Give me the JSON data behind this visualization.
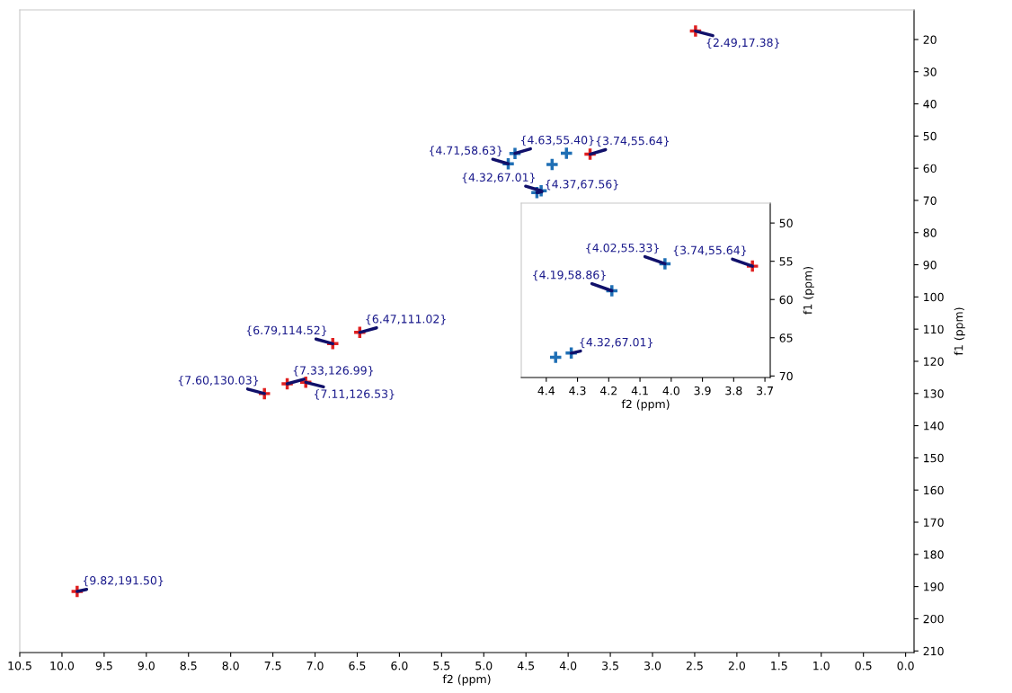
{
  "chart_data": [
    {
      "type": "scatter",
      "xlabel": "f2 (ppm)",
      "ylabel": "f1 (ppm)",
      "marker": "cross",
      "grid": false,
      "xlim": [
        10.5,
        -0.1
      ],
      "ylim": [
        210.5,
        10.8
      ],
      "xticks": [
        10.5,
        {
          "value": 10,
          "label": "10.0"
        },
        9.5,
        {
          "value": 9,
          "label": "9.0"
        },
        8.5,
        {
          "value": 8,
          "label": "8.0"
        },
        7.5,
        {
          "value": 7,
          "label": "7.0"
        },
        6.5,
        {
          "value": 6,
          "label": "6.0"
        },
        5.5,
        {
          "value": 5,
          "label": "5.0"
        },
        4.5,
        {
          "value": 4,
          "label": "4.0"
        },
        3.5,
        {
          "value": 3,
          "label": "3.0"
        },
        2.5,
        {
          "value": 2,
          "label": "2.0"
        },
        1.5,
        {
          "value": 1,
          "label": "1.0"
        },
        0.5,
        {
          "value": 0,
          "label": "0.0"
        }
      ],
      "yticks": [
        20,
        30,
        40,
        50,
        60,
        70,
        80,
        90,
        100,
        110,
        120,
        130,
        140,
        150,
        160,
        170,
        180,
        190,
        200,
        210
      ],
      "series": [
        {
          "color": "#e02020",
          "x": [
            2.49,
            3.74,
            6.79,
            6.47,
            7.6,
            7.33,
            7.11,
            9.82
          ],
          "values": [
            17.38,
            55.64,
            114.52,
            111.02,
            130.03,
            126.99,
            126.53,
            191.5
          ]
        },
        {
          "color": "#1f6fb5",
          "x": [
            4.71,
            4.63,
            4.32,
            4.37,
            4.19,
            4.02
          ],
          "values": [
            58.63,
            55.4,
            67.01,
            67.56,
            58.86,
            55.33
          ]
        }
      ],
      "annotations": [
        {
          "text": "{2.49,17.38}",
          "x": 2.49,
          "y": 17.38
        },
        {
          "text": "{4.71,58.63}",
          "x": 4.71,
          "y": 58.63
        },
        {
          "text": "{4.63,55.40}",
          "x": 4.63,
          "y": 55.4
        },
        {
          "text": "{3.74,55.64}",
          "x": 3.74,
          "y": 55.64
        },
        {
          "text": "{4.32,67.01}",
          "x": 4.32,
          "y": 67.01
        },
        {
          "text": "{4.37,67.56}",
          "x": 4.37,
          "y": 67.56
        },
        {
          "text": "{6.79,114.52}",
          "x": 6.79,
          "y": 114.52
        },
        {
          "text": "{6.47,111.02}",
          "x": 6.47,
          "y": 111.02
        },
        {
          "text": "{7.60,130.03}",
          "x": 7.6,
          "y": 130.03
        },
        {
          "text": "{7.33,126.99}",
          "x": 7.33,
          "y": 126.99
        },
        {
          "text": "{7.11,126.53}",
          "x": 7.11,
          "y": 126.53
        },
        {
          "text": "{9.82,191.50}",
          "x": 9.82,
          "y": 191.5
        }
      ]
    },
    {
      "type": "scatter",
      "xlabel": "f2 (ppm)",
      "ylabel": "f1 (ppm)",
      "marker": "cross",
      "grid": false,
      "xlim": [
        4.48,
        3.683
      ],
      "ylim": [
        70.2,
        47.4
      ],
      "xticks": [
        4.4,
        4.3,
        4.2,
        4.1,
        {
          "value": 4,
          "label": "4.0"
        },
        3.9,
        3.8,
        3.7
      ],
      "yticks": [
        50,
        55,
        60,
        65,
        70
      ],
      "series": [
        {
          "color": "#e02020",
          "x": [
            3.74
          ],
          "values": [
            55.64
          ]
        },
        {
          "color": "#1f6fb5",
          "x": [
            4.37,
            4.32,
            4.19,
            4.02
          ],
          "values": [
            67.56,
            67.01,
            58.86,
            55.33
          ]
        }
      ],
      "annotations": [
        {
          "text": "{4.02,55.33}",
          "x": 4.02,
          "y": 55.33
        },
        {
          "text": "{3.74,55.64}",
          "x": 3.74,
          "y": 55.64
        },
        {
          "text": "{4.19,58.86}",
          "x": 4.19,
          "y": 58.86
        },
        {
          "text": "{4.32,67.01}",
          "x": 4.32,
          "y": 67.01
        }
      ]
    }
  ]
}
